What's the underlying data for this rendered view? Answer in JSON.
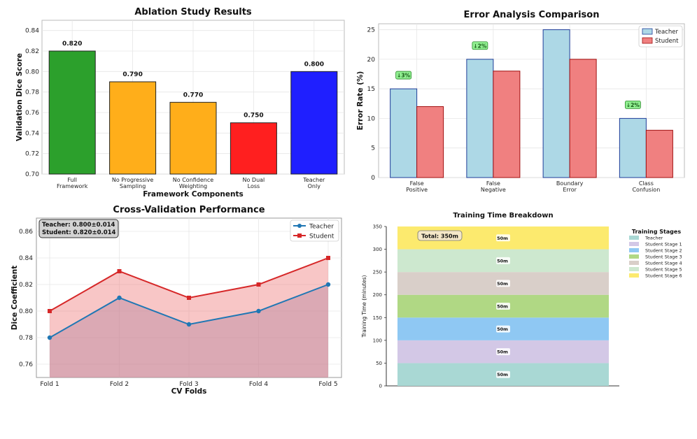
{
  "chart_data": [
    {
      "type": "bar",
      "title": "Ablation Study Results",
      "xlabel": "Framework Components",
      "ylabel": "Validation Dice Score",
      "ylim": [
        0.7,
        0.85
      ],
      "yticks": [
        "0.70",
        "0.72",
        "0.74",
        "0.76",
        "0.78",
        "0.80",
        "0.82",
        "0.84"
      ],
      "categories": [
        [
          "Full",
          "Framework"
        ],
        [
          "No Progressive",
          "Sampling"
        ],
        [
          "No Confidence",
          "Weighting"
        ],
        [
          "No Dual",
          "Loss"
        ],
        [
          "Teacher",
          "Only"
        ]
      ],
      "values": [
        0.82,
        0.79,
        0.77,
        0.75,
        0.8
      ],
      "value_labels": [
        "0.820",
        "0.790",
        "0.770",
        "0.750",
        "0.800"
      ],
      "colors": [
        "#2ca02c",
        "#ffae1a",
        "#ffae1a",
        "#ff1f1f",
        "#1f1fff"
      ]
    },
    {
      "type": "bar",
      "title": "Error Analysis Comparison",
      "xlabel": "",
      "ylabel": "Error Rate (%)",
      "ylim": [
        0,
        26
      ],
      "yticks": [
        "0",
        "5",
        "10",
        "15",
        "20",
        "25"
      ],
      "categories": [
        [
          "False",
          "Positive"
        ],
        [
          "False",
          "Negative"
        ],
        [
          "Boundary",
          "Error"
        ],
        [
          "Class",
          "Confusion"
        ]
      ],
      "series": [
        {
          "name": "Teacher",
          "values": [
            15,
            20,
            25,
            10
          ],
          "color": "#add8e6",
          "edge": "#1f3d99"
        },
        {
          "name": "Student",
          "values": [
            12,
            18,
            20,
            8
          ],
          "color": "#f08080",
          "edge": "#a01010"
        }
      ],
      "annotations": [
        {
          "category": 0,
          "text": "↓3%"
        },
        {
          "category": 1,
          "text": "↓2%"
        },
        {
          "category": 3,
          "text": "↓2%"
        }
      ],
      "legend": "top-right"
    },
    {
      "type": "line",
      "title": "Cross-Validation Performance",
      "xlabel": "CV Folds",
      "ylabel": "Dice Coefficient",
      "ylim": [
        0.75,
        0.87
      ],
      "yticks": [
        "0.76",
        "0.78",
        "0.80",
        "0.82",
        "0.84",
        "0.86"
      ],
      "x": [
        "Fold 1",
        "Fold 2",
        "Fold 3",
        "Fold 4",
        "Fold 5"
      ],
      "series": [
        {
          "name": "Teacher",
          "values": [
            0.78,
            0.81,
            0.79,
            0.8,
            0.82
          ],
          "color": "#1f77b4"
        },
        {
          "name": "Student",
          "values": [
            0.8,
            0.83,
            0.81,
            0.82,
            0.84
          ],
          "color": "#d62728"
        }
      ],
      "stats_box": [
        "Teacher: 0.800±0.014",
        "Student: 0.820±0.014"
      ],
      "legend": "top-right"
    },
    {
      "type": "bar",
      "subtype": "stacked",
      "title": "Training Time Breakdown",
      "ylabel": "Training Time (minutes)",
      "ylim": [
        0,
        350
      ],
      "yticks": [
        "0",
        "50",
        "100",
        "150",
        "200",
        "250",
        "300",
        "350"
      ],
      "legend_title": "Training Stages",
      "series": [
        {
          "name": "Teacher",
          "value": 50,
          "label": "50m",
          "color": "#a9d8d4"
        },
        {
          "name": "Student Stage 1",
          "value": 50,
          "label": "50m",
          "color": "#d3c8e6"
        },
        {
          "name": "Student Stage 2",
          "value": 50,
          "label": "50m",
          "color": "#8fc8f3"
        },
        {
          "name": "Student Stage 3",
          "value": 50,
          "label": "50m",
          "color": "#b0d884"
        },
        {
          "name": "Student Stage 4",
          "value": 50,
          "label": "50m",
          "color": "#d9cfc9"
        },
        {
          "name": "Student Stage 5",
          "value": 50,
          "label": "50m",
          "color": "#cde8cf"
        },
        {
          "name": "Student Stage 6",
          "value": 50,
          "label": "50m",
          "color": "#fcea6e"
        }
      ],
      "total_label": "Total: 350m",
      "legend": "right"
    }
  ]
}
